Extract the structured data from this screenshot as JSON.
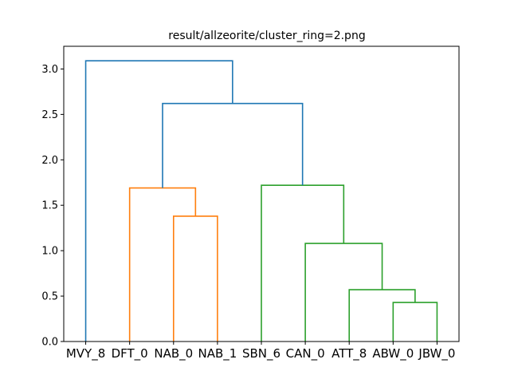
{
  "chart_data": {
    "type": "dendrogram",
    "title": "result/allzeorite/cluster_ring=2.png",
    "xlabel": "",
    "ylabel": "",
    "ylim": [
      0,
      3.25
    ],
    "yticks": [
      "0.0",
      "0.5",
      "1.0",
      "1.5",
      "2.0",
      "2.5",
      "3.0"
    ],
    "leaves": [
      "MVY_8",
      "DFT_0",
      "NAB_0",
      "NAB_1",
      "SBN_6",
      "CAN_0",
      "ATT_8",
      "ABW_0",
      "JBW_0"
    ],
    "colors": {
      "above_threshold": "#1f77b4",
      "cluster_1": "#ff7f0e",
      "cluster_2": "#2ca02c"
    },
    "links": [
      {
        "left": [
          "NAB_0"
        ],
        "right": [
          "NAB_1"
        ],
        "height": 1.38,
        "color": "cluster_1"
      },
      {
        "left": [
          "DFT_0"
        ],
        "right": [
          "NAB_0",
          "NAB_1"
        ],
        "height": 1.69,
        "color": "cluster_1"
      },
      {
        "left": [
          "ABW_0"
        ],
        "right": [
          "JBW_0"
        ],
        "height": 0.43,
        "color": "cluster_2"
      },
      {
        "left": [
          "ATT_8"
        ],
        "right": [
          "ABW_0",
          "JBW_0"
        ],
        "height": 0.57,
        "color": "cluster_2"
      },
      {
        "left": [
          "CAN_0"
        ],
        "right": [
          "ATT_8",
          "ABW_0",
          "JBW_0"
        ],
        "height": 1.08,
        "color": "cluster_2"
      },
      {
        "left": [
          "SBN_6"
        ],
        "right": [
          "CAN_0",
          "ATT_8",
          "ABW_0",
          "JBW_0"
        ],
        "height": 1.72,
        "color": "cluster_2"
      },
      {
        "left": [
          "DFT_0",
          "NAB_0",
          "NAB_1"
        ],
        "right": [
          "SBN_6",
          "CAN_0",
          "ATT_8",
          "ABW_0",
          "JBW_0"
        ],
        "height": 2.62,
        "color": "above_threshold"
      },
      {
        "left": [
          "MVY_8"
        ],
        "right": [
          "DFT_0",
          "NAB_0",
          "NAB_1",
          "SBN_6",
          "CAN_0",
          "ATT_8",
          "ABW_0",
          "JBW_0"
        ],
        "height": 3.09,
        "color": "above_threshold"
      }
    ]
  }
}
